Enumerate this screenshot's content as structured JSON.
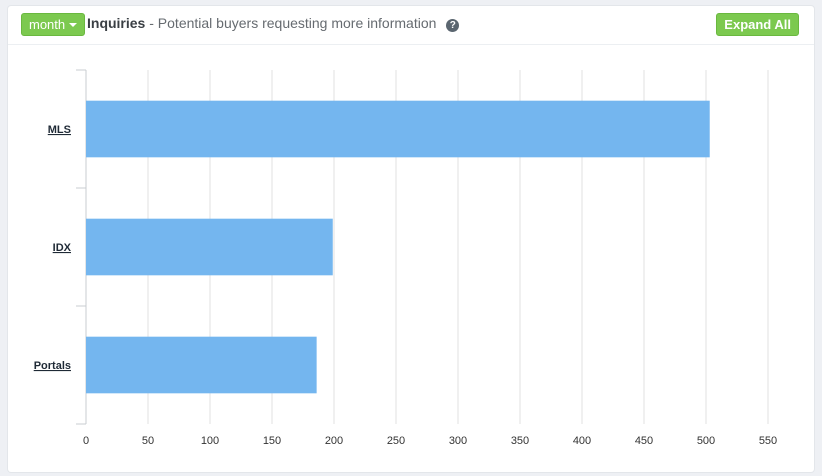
{
  "header": {
    "period_button": "month",
    "title": "Inquiries",
    "subtitle": "- Potential buyers requesting more information",
    "help_icon": "question-circle-icon",
    "expand_button": "Expand All"
  },
  "colors": {
    "bar": "#74b6ef",
    "button": "#7cc94f",
    "grid": "#e0e0e0"
  },
  "chart_data": {
    "type": "bar",
    "orientation": "horizontal",
    "categories": [
      "MLS",
      "IDX",
      "Portals"
    ],
    "values": [
      503,
      199,
      186
    ],
    "xlim": [
      0,
      550
    ],
    "xticks": [
      0,
      50,
      100,
      150,
      200,
      250,
      300,
      350,
      400,
      450,
      500,
      550
    ],
    "grid": true,
    "title": "",
    "xlabel": "",
    "ylabel": ""
  }
}
